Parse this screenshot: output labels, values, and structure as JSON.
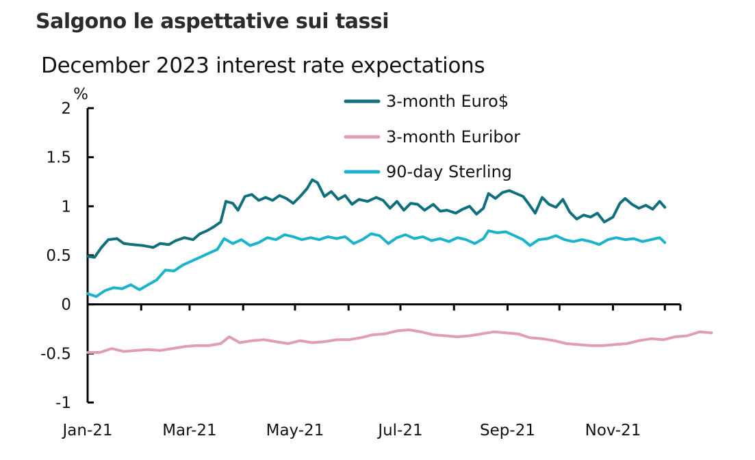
{
  "header": {
    "title": "Salgono le aspettative sui tassi"
  },
  "chart_data": {
    "type": "line",
    "title": "December 2023 interest rate expectations",
    "ylabel": "%",
    "xlabel": "",
    "ylim": [
      -1,
      2
    ],
    "yticks": [
      -1,
      -0.5,
      0,
      0.5,
      1,
      1.5,
      2
    ],
    "ytick_labels": [
      "-1",
      "-0.5",
      "0",
      "0.5",
      "1",
      "1.5",
      "2"
    ],
    "xlim": [
      "2021-01-01",
      "2021-12-10"
    ],
    "xticks": [
      "2021-01-01",
      "2021-03-01",
      "2021-05-01",
      "2021-07-01",
      "2021-09-01",
      "2021-11-01"
    ],
    "xtick_labels": [
      "Jan-21",
      "Mar-21",
      "May-21",
      "Jul-21",
      "Sep-21",
      "Nov-21"
    ],
    "minor_xticks": [
      "2021-02-01",
      "2021-04-01",
      "2021-06-01",
      "2021-08-01",
      "2021-10-01",
      "2021-12-01"
    ],
    "grid": false,
    "legend_position": "top-center",
    "series": [
      {
        "name": "3-month Euro$",
        "color": "#0f6f7c",
        "points": [
          [
            "2021-01-01",
            0.49
          ],
          [
            "2021-01-05",
            0.48
          ],
          [
            "2021-01-09",
            0.58
          ],
          [
            "2021-01-13",
            0.66
          ],
          [
            "2021-01-18",
            0.67
          ],
          [
            "2021-01-22",
            0.62
          ],
          [
            "2021-01-27",
            0.61
          ],
          [
            "2021-02-02",
            0.6
          ],
          [
            "2021-02-08",
            0.58
          ],
          [
            "2021-02-12",
            0.62
          ],
          [
            "2021-02-17",
            0.61
          ],
          [
            "2021-02-21",
            0.65
          ],
          [
            "2021-02-26",
            0.68
          ],
          [
            "2021-03-03",
            0.66
          ],
          [
            "2021-03-07",
            0.72
          ],
          [
            "2021-03-11",
            0.75
          ],
          [
            "2021-03-15",
            0.79
          ],
          [
            "2021-03-19",
            0.84
          ],
          [
            "2021-03-22",
            1.05
          ],
          [
            "2021-03-26",
            1.03
          ],
          [
            "2021-03-29",
            0.96
          ],
          [
            "2021-04-02",
            1.1
          ],
          [
            "2021-04-06",
            1.12
          ],
          [
            "2021-04-10",
            1.06
          ],
          [
            "2021-04-14",
            1.09
          ],
          [
            "2021-04-18",
            1.06
          ],
          [
            "2021-04-22",
            1.11
          ],
          [
            "2021-04-26",
            1.08
          ],
          [
            "2021-04-30",
            1.03
          ],
          [
            "2021-05-04",
            1.1
          ],
          [
            "2021-05-08",
            1.18
          ],
          [
            "2021-05-11",
            1.27
          ],
          [
            "2021-05-14",
            1.24
          ],
          [
            "2021-05-18",
            1.1
          ],
          [
            "2021-05-22",
            1.15
          ],
          [
            "2021-05-26",
            1.07
          ],
          [
            "2021-05-30",
            1.11
          ],
          [
            "2021-06-03",
            1.02
          ],
          [
            "2021-06-07",
            1.07
          ],
          [
            "2021-06-12",
            1.05
          ],
          [
            "2021-06-17",
            1.09
          ],
          [
            "2021-06-21",
            1.06
          ],
          [
            "2021-06-25",
            0.98
          ],
          [
            "2021-06-29",
            1.05
          ],
          [
            "2021-07-03",
            0.96
          ],
          [
            "2021-07-07",
            1.03
          ],
          [
            "2021-07-11",
            1.02
          ],
          [
            "2021-07-15",
            0.96
          ],
          [
            "2021-07-20",
            1.02
          ],
          [
            "2021-07-24",
            0.95
          ],
          [
            "2021-07-28",
            0.96
          ],
          [
            "2021-08-02",
            0.93
          ],
          [
            "2021-08-06",
            0.97
          ],
          [
            "2021-08-10",
            1.0
          ],
          [
            "2021-08-14",
            0.92
          ],
          [
            "2021-08-18",
            0.98
          ],
          [
            "2021-08-21",
            1.13
          ],
          [
            "2021-08-25",
            1.08
          ],
          [
            "2021-08-29",
            1.14
          ],
          [
            "2021-09-02",
            1.16
          ],
          [
            "2021-09-06",
            1.13
          ],
          [
            "2021-09-10",
            1.1
          ],
          [
            "2021-09-13",
            1.03
          ],
          [
            "2021-09-17",
            0.93
          ],
          [
            "2021-09-21",
            1.09
          ],
          [
            "2021-09-25",
            1.02
          ],
          [
            "2021-09-29",
            0.99
          ],
          [
            "2021-10-03",
            1.07
          ],
          [
            "2021-10-07",
            0.94
          ],
          [
            "2021-10-11",
            0.87
          ],
          [
            "2021-10-15",
            0.91
          ],
          [
            "2021-10-19",
            0.89
          ],
          [
            "2021-10-23",
            0.93
          ],
          [
            "2021-10-27",
            0.84
          ],
          [
            "2021-11-01",
            0.89
          ],
          [
            "2021-11-05",
            1.03
          ],
          [
            "2021-11-08",
            1.08
          ],
          [
            "2021-11-12",
            1.02
          ],
          [
            "2021-11-16",
            0.98
          ],
          [
            "2021-11-20",
            1.01
          ],
          [
            "2021-11-24",
            0.97
          ],
          [
            "2021-11-28",
            1.05
          ],
          [
            "2021-12-01",
            0.99
          ]
        ]
      },
      {
        "name": "3-month Euribor",
        "color": "#e19eb0",
        "points": [
          [
            "2021-01-01",
            -0.49
          ],
          [
            "2021-01-08",
            -0.49
          ],
          [
            "2021-01-15",
            -0.45
          ],
          [
            "2021-01-22",
            -0.48
          ],
          [
            "2021-01-29",
            -0.47
          ],
          [
            "2021-02-05",
            -0.46
          ],
          [
            "2021-02-12",
            -0.47
          ],
          [
            "2021-02-19",
            -0.45
          ],
          [
            "2021-02-26",
            -0.43
          ],
          [
            "2021-03-05",
            -0.42
          ],
          [
            "2021-03-12",
            -0.42
          ],
          [
            "2021-03-19",
            -0.4
          ],
          [
            "2021-03-24",
            -0.33
          ],
          [
            "2021-03-30",
            -0.39
          ],
          [
            "2021-04-06",
            -0.37
          ],
          [
            "2021-04-13",
            -0.36
          ],
          [
            "2021-04-20",
            -0.38
          ],
          [
            "2021-04-27",
            -0.4
          ],
          [
            "2021-05-04",
            -0.37
          ],
          [
            "2021-05-11",
            -0.39
          ],
          [
            "2021-05-18",
            -0.38
          ],
          [
            "2021-05-25",
            -0.36
          ],
          [
            "2021-06-01",
            -0.36
          ],
          [
            "2021-06-08",
            -0.34
          ],
          [
            "2021-06-15",
            -0.31
          ],
          [
            "2021-06-22",
            -0.3
          ],
          [
            "2021-06-29",
            -0.27
          ],
          [
            "2021-07-06",
            -0.26
          ],
          [
            "2021-07-13",
            -0.28
          ],
          [
            "2021-07-20",
            -0.31
          ],
          [
            "2021-07-27",
            -0.32
          ],
          [
            "2021-08-03",
            -0.33
          ],
          [
            "2021-08-10",
            -0.32
          ],
          [
            "2021-08-17",
            -0.3
          ],
          [
            "2021-08-24",
            -0.28
          ],
          [
            "2021-08-31",
            -0.29
          ],
          [
            "2021-09-07",
            -0.3
          ],
          [
            "2021-09-14",
            -0.34
          ],
          [
            "2021-09-21",
            -0.35
          ],
          [
            "2021-09-28",
            -0.37
          ],
          [
            "2021-10-05",
            -0.4
          ],
          [
            "2021-10-12",
            -0.41
          ],
          [
            "2021-10-19",
            -0.42
          ],
          [
            "2021-10-26",
            -0.42
          ],
          [
            "2021-11-02",
            -0.41
          ],
          [
            "2021-11-09",
            -0.4
          ],
          [
            "2021-11-16",
            -0.37
          ],
          [
            "2021-11-23",
            -0.35
          ],
          [
            "2021-11-30",
            -0.36
          ],
          [
            "2021-12-07",
            -0.33
          ],
          [
            "2021-12-14",
            -0.32
          ],
          [
            "2021-12-21",
            -0.28
          ],
          [
            "2021-12-28",
            -0.29
          ]
        ]
      },
      {
        "name": "90-day Sterling",
        "color": "#1bb3cc",
        "points": [
          [
            "2021-01-01",
            0.11
          ],
          [
            "2021-01-06",
            0.08
          ],
          [
            "2021-01-11",
            0.14
          ],
          [
            "2021-01-16",
            0.17
          ],
          [
            "2021-01-21",
            0.16
          ],
          [
            "2021-01-26",
            0.2
          ],
          [
            "2021-01-31",
            0.15
          ],
          [
            "2021-02-05",
            0.2
          ],
          [
            "2021-02-10",
            0.25
          ],
          [
            "2021-02-15",
            0.35
          ],
          [
            "2021-02-20",
            0.34
          ],
          [
            "2021-02-25",
            0.4
          ],
          [
            "2021-03-02",
            0.44
          ],
          [
            "2021-03-07",
            0.48
          ],
          [
            "2021-03-12",
            0.52
          ],
          [
            "2021-03-17",
            0.56
          ],
          [
            "2021-03-21",
            0.67
          ],
          [
            "2021-03-26",
            0.62
          ],
          [
            "2021-03-31",
            0.66
          ],
          [
            "2021-04-05",
            0.6
          ],
          [
            "2021-04-10",
            0.63
          ],
          [
            "2021-04-15",
            0.68
          ],
          [
            "2021-04-20",
            0.66
          ],
          [
            "2021-04-25",
            0.71
          ],
          [
            "2021-04-30",
            0.69
          ],
          [
            "2021-05-05",
            0.66
          ],
          [
            "2021-05-10",
            0.68
          ],
          [
            "2021-05-15",
            0.66
          ],
          [
            "2021-05-20",
            0.69
          ],
          [
            "2021-05-25",
            0.67
          ],
          [
            "2021-05-30",
            0.69
          ],
          [
            "2021-06-04",
            0.62
          ],
          [
            "2021-06-09",
            0.66
          ],
          [
            "2021-06-14",
            0.72
          ],
          [
            "2021-06-19",
            0.7
          ],
          [
            "2021-06-24",
            0.62
          ],
          [
            "2021-06-29",
            0.68
          ],
          [
            "2021-07-04",
            0.71
          ],
          [
            "2021-07-09",
            0.67
          ],
          [
            "2021-07-14",
            0.69
          ],
          [
            "2021-07-19",
            0.65
          ],
          [
            "2021-07-24",
            0.67
          ],
          [
            "2021-07-29",
            0.64
          ],
          [
            "2021-08-03",
            0.68
          ],
          [
            "2021-08-08",
            0.66
          ],
          [
            "2021-08-13",
            0.62
          ],
          [
            "2021-08-18",
            0.67
          ],
          [
            "2021-08-21",
            0.75
          ],
          [
            "2021-08-26",
            0.73
          ],
          [
            "2021-08-31",
            0.74
          ],
          [
            "2021-09-05",
            0.7
          ],
          [
            "2021-09-10",
            0.66
          ],
          [
            "2021-09-14",
            0.6
          ],
          [
            "2021-09-19",
            0.66
          ],
          [
            "2021-09-24",
            0.67
          ],
          [
            "2021-09-29",
            0.7
          ],
          [
            "2021-10-04",
            0.66
          ],
          [
            "2021-10-09",
            0.64
          ],
          [
            "2021-10-14",
            0.66
          ],
          [
            "2021-10-19",
            0.64
          ],
          [
            "2021-10-24",
            0.61
          ],
          [
            "2021-10-29",
            0.66
          ],
          [
            "2021-11-03",
            0.68
          ],
          [
            "2021-11-08",
            0.66
          ],
          [
            "2021-11-13",
            0.67
          ],
          [
            "2021-11-18",
            0.64
          ],
          [
            "2021-11-23",
            0.66
          ],
          [
            "2021-11-28",
            0.68
          ],
          [
            "2021-12-01",
            0.63
          ]
        ]
      }
    ]
  }
}
